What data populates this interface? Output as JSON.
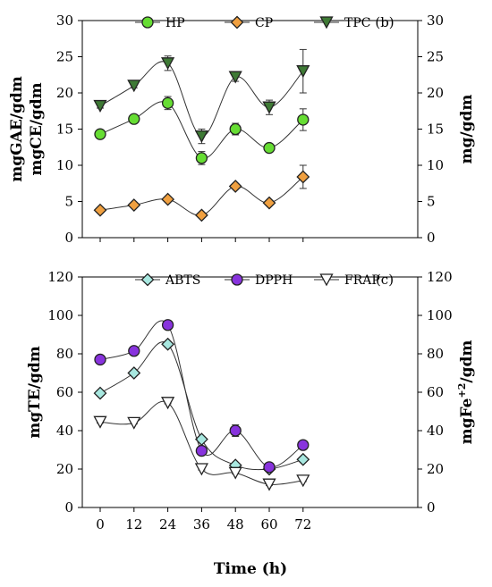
{
  "chart_data": [
    {
      "type": "line",
      "panel_label": "(b)",
      "x": [
        0,
        12,
        24,
        36,
        48,
        60,
        72
      ],
      "ylim": [
        0,
        30
      ],
      "yticks": [
        0,
        5,
        10,
        15,
        20,
        25,
        30
      ],
      "ylabel_left": [
        "mgGAE/gdm",
        "mgCE/gdm"
      ],
      "ylabel_right": "mg/gdm",
      "legend_position": "top-center",
      "series": [
        {
          "name": "HP",
          "marker": "circle",
          "color": "#66dd33",
          "values": [
            14.3,
            16.4,
            18.6,
            11.0,
            15.0,
            12.4,
            16.3
          ],
          "errors": [
            0.4,
            0.4,
            0.9,
            0.9,
            0.8,
            0.3,
            1.5
          ]
        },
        {
          "name": "CP",
          "marker": "diamond",
          "color": "#f0a040",
          "values": [
            3.8,
            4.5,
            5.3,
            3.1,
            7.1,
            4.8,
            8.4
          ],
          "errors": [
            0.2,
            0.3,
            0.3,
            0.2,
            0.3,
            0.2,
            1.6
          ]
        },
        {
          "name": "TPC",
          "marker": "triangle-down",
          "color": "#3e7a35",
          "values": [
            18.2,
            21.0,
            24.1,
            14.0,
            22.2,
            18.0,
            23.0
          ],
          "errors": [
            0.3,
            0.3,
            1.0,
            1.0,
            0.6,
            1.0,
            3.0
          ]
        }
      ]
    },
    {
      "type": "line",
      "panel_label": "(c)",
      "x": [
        0,
        12,
        24,
        36,
        48,
        60,
        72
      ],
      "xticks": [
        "0",
        "12",
        "24",
        "36",
        "48",
        "60",
        "72"
      ],
      "xlabel": "Time (h)",
      "ylim": [
        0,
        120
      ],
      "yticks": [
        0,
        20,
        40,
        60,
        80,
        100,
        120
      ],
      "ylabel_left": "mgTE/gdm",
      "ylabel_right": "mgFe+2/gdm",
      "legend_position": "top-center",
      "series": [
        {
          "name": "ABTS",
          "marker": "diamond",
          "color": "#a8e8e0",
          "values": [
            59.5,
            70.0,
            85.0,
            35.5,
            22.0,
            20.0,
            25.0
          ],
          "errors": [
            1.0,
            1.0,
            1.0,
            1.0,
            1.0,
            1.0,
            1.0
          ]
        },
        {
          "name": "DPPH",
          "marker": "circle",
          "color": "#8833dd",
          "values": [
            77.0,
            81.5,
            95.0,
            29.5,
            40.0,
            21.0,
            32.5
          ],
          "errors": [
            2.0,
            1.5,
            1.0,
            1.5,
            3.0,
            1.0,
            2.0
          ]
        },
        {
          "name": "FRAP",
          "marker": "triangle-down",
          "color": "#ffffff",
          "values": [
            44.5,
            44.0,
            54.5,
            20.0,
            18.0,
            12.0,
            14.0
          ],
          "errors": [
            0.5,
            0.5,
            0.5,
            0.5,
            0.5,
            0.5,
            0.5
          ]
        }
      ]
    }
  ]
}
